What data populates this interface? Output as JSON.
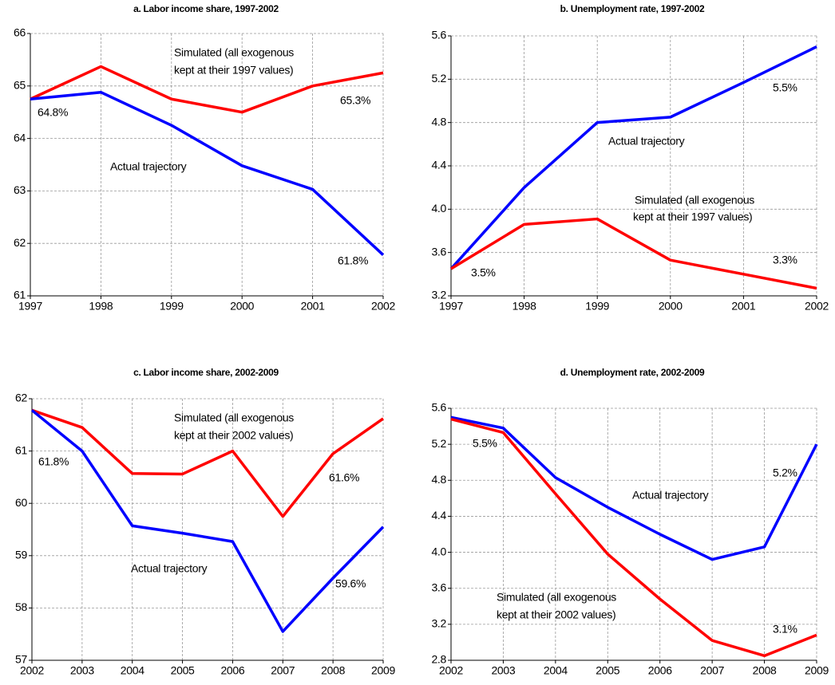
{
  "chart_data": [
    {
      "type": "line",
      "title": "a. Labor income share, 1997-2002",
      "x": [
        1997,
        1998,
        1999,
        2000,
        2001,
        2002
      ],
      "xlim": [
        1997,
        2002
      ],
      "xticks": [
        1997,
        1998,
        1999,
        2000,
        2001,
        2002
      ],
      "ylim": [
        61,
        66
      ],
      "yticks": [
        61,
        62,
        63,
        64,
        65,
        66
      ],
      "grid": true,
      "series": [
        {
          "color": "#ff0000",
          "values": [
            64.75,
            65.37,
            64.75,
            64.5,
            65.0,
            65.25
          ]
        },
        {
          "color": "#0000ff",
          "values": [
            64.75,
            64.88,
            64.25,
            63.48,
            63.03,
            61.78
          ]
        }
      ],
      "annotations": [
        "Simulated (all exogenous",
        "kept at their 1997 values)",
        "Actual trajectory",
        "64.8%",
        "65.3%",
        "61.8%"
      ]
    },
    {
      "type": "line",
      "title": "b. Unemployment rate, 1997-2002",
      "x": [
        1997,
        1998,
        1999,
        2000,
        2001,
        2002
      ],
      "xlim": [
        1997,
        2002
      ],
      "xticks": [
        1997,
        1998,
        1999,
        2000,
        2001,
        2002
      ],
      "ylim": [
        3.2,
        5.6
      ],
      "yticks": [
        3.2,
        3.6,
        {
          "value": 4,
          "label": "4.0"
        },
        4.4,
        4.8,
        5.2,
        5.6
      ],
      "grid": true,
      "series": [
        {
          "color": "#0000ff",
          "values": [
            3.45,
            4.2,
            4.8,
            4.85,
            5.17,
            5.5
          ]
        },
        {
          "color": "#ff0000",
          "values": [
            3.45,
            3.86,
            3.91,
            3.53,
            3.4,
            3.27
          ]
        }
      ],
      "annotations": [
        "Actual trajectory",
        "Simulated (all exogenous",
        "kept at their 1997 values)",
        "3.5%",
        "3.3%",
        "5.5%"
      ]
    },
    {
      "type": "line",
      "title": "c. Labor income share, 2002-2009",
      "x": [
        2002,
        2003,
        2004,
        2005,
        2006,
        2007,
        2008,
        2009
      ],
      "xlim": [
        2002,
        2009
      ],
      "xticks": [
        2002,
        2003,
        2004,
        2005,
        2006,
        2007,
        2008,
        2009
      ],
      "ylim": [
        57,
        62
      ],
      "yticks": [
        57,
        58,
        59,
        60,
        61,
        62
      ],
      "grid": true,
      "series": [
        {
          "color": "#ff0000",
          "values": [
            61.78,
            61.45,
            60.57,
            60.56,
            61.0,
            59.75,
            60.95,
            61.62
          ]
        },
        {
          "color": "#0000ff",
          "values": [
            61.78,
            61.0,
            59.57,
            59.43,
            59.27,
            57.55,
            58.57,
            59.55
          ]
        }
      ],
      "annotations": [
        "Simulated (all exogenous",
        "kept at their 2002 values)",
        "Actual trajectory",
        "61.8%",
        "61.6%",
        "59.6%"
      ]
    },
    {
      "type": "line",
      "title": "d. Unemployment rate, 2002-2009",
      "x": [
        2002,
        2003,
        2004,
        2005,
        2006,
        2007,
        2008,
        2009
      ],
      "xlim": [
        2002,
        2009
      ],
      "xticks": [
        2002,
        2003,
        2004,
        2005,
        2006,
        2007,
        2008,
        2009
      ],
      "ylim": [
        2.8,
        5.6
      ],
      "yticks": [
        2.8,
        3.2,
        3.6,
        {
          "value": 4,
          "label": "4.0"
        },
        4.4,
        4.8,
        5.2,
        5.6
      ],
      "grid": true,
      "series": [
        {
          "color": "#0000ff",
          "values": [
            5.5,
            5.38,
            4.83,
            4.5,
            4.2,
            3.92,
            4.06,
            5.2
          ]
        },
        {
          "color": "#ff0000",
          "values": [
            5.48,
            5.33,
            4.65,
            3.98,
            3.48,
            3.02,
            2.85,
            3.08
          ]
        }
      ],
      "annotations": [
        "Actual trajectory",
        "Simulated (all exogenous",
        "kept at their 2002 values)",
        "5.5%",
        "5.2%",
        "3.1%"
      ]
    }
  ]
}
